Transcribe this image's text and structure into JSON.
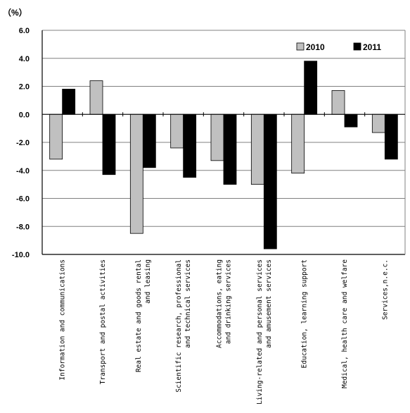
{
  "chart_data": {
    "type": "bar",
    "ylabel": "（%）",
    "ylim": [
      -10.0,
      6.0
    ],
    "ytick_step": 2.0,
    "grid": true,
    "legend_position": "top-right",
    "categories": [
      [
        "Information and communications"
      ],
      [
        "Transport and postal activities"
      ],
      [
        "Real estate and goods rental",
        "and leasing"
      ],
      [
        "Scientific research, professional",
        "and technical services"
      ],
      [
        "Accommodations, eating",
        "and drinking services"
      ],
      [
        "Living-related and personal services",
        "and amusement services"
      ],
      [
        "Education, learning support"
      ],
      [
        "Medical, health care and welfare"
      ],
      [
        "Services,n.e.c."
      ]
    ],
    "series": [
      {
        "name": "2010",
        "color": "#c0c0c0",
        "values": [
          -3.2,
          2.4,
          -8.5,
          -2.4,
          -3.3,
          -5.0,
          -4.2,
          1.7,
          -1.3
        ]
      },
      {
        "name": "2011",
        "color": "#000000",
        "values": [
          1.8,
          -4.3,
          -3.8,
          -4.5,
          -5.0,
          -9.6,
          3.8,
          -0.9,
          -3.2
        ]
      }
    ]
  }
}
